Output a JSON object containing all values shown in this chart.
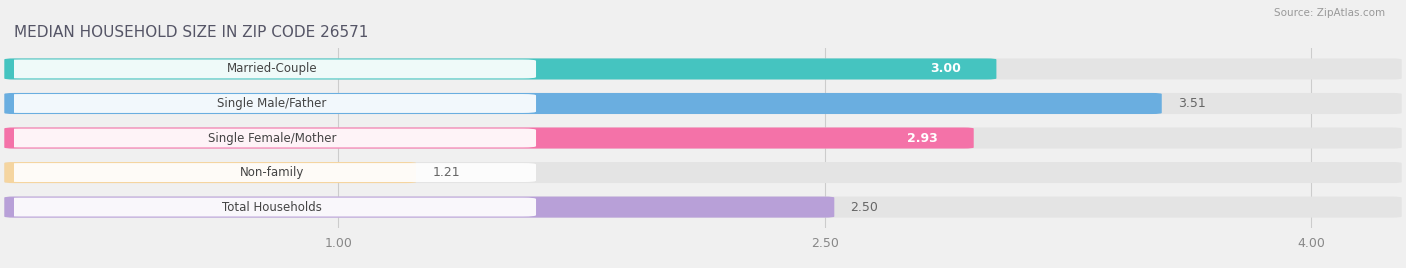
{
  "title": "MEDIAN HOUSEHOLD SIZE IN ZIP CODE 26571",
  "source": "Source: ZipAtlas.com",
  "categories": [
    "Married-Couple",
    "Single Male/Father",
    "Single Female/Mother",
    "Non-family",
    "Total Households"
  ],
  "values": [
    3.0,
    3.51,
    2.93,
    1.21,
    2.5
  ],
  "bar_colors": [
    "#45c4c0",
    "#6aaee0",
    "#f472a8",
    "#f5d5a0",
    "#b8a0d8"
  ],
  "value_in_bar": [
    true,
    false,
    true,
    false,
    false
  ],
  "xlim_left": 0.0,
  "xlim_right": 4.25,
  "xticks": [
    1.0,
    2.5,
    4.0
  ],
  "xtick_labels": [
    "1.00",
    "2.50",
    "4.00"
  ],
  "background_color": "#f0f0f0",
  "bar_bg_color": "#e4e4e4",
  "label_pill_color": "#ffffff",
  "title_color": "#555566",
  "source_color": "#999999",
  "title_fontsize": 11,
  "label_fontsize": 8.5,
  "value_fontsize": 9,
  "tick_fontsize": 9,
  "bar_height": 0.55,
  "bar_gap": 1.0
}
